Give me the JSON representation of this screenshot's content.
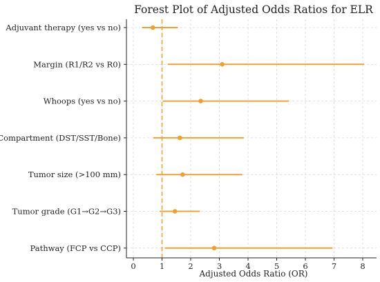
{
  "chart_data": {
    "type": "scatter",
    "title": "Forest Plot of Adjusted Odds Ratios for ELR",
    "xlabel": "Adjusted Odds Ratio (OR)",
    "ylabel": "",
    "xlim": [
      -0.25,
      8.4
    ],
    "xticks": [
      0,
      1,
      2,
      3,
      4,
      5,
      6,
      7,
      8
    ],
    "reference_line": 1,
    "grid": true,
    "color": "#f0a030",
    "rows": [
      {
        "label": "Adjuvant therapy (yes vs no)",
        "or": 0.68,
        "lower": 0.3,
        "upper": 1.55
      },
      {
        "label": "Margin (R1/R2 vs R0)",
        "or": 3.1,
        "lower": 1.2,
        "upper": 8.05
      },
      {
        "label": "Whoops (yes vs no)",
        "or": 2.35,
        "lower": 1.02,
        "upper": 5.42
      },
      {
        "label": "Compartment (DST/SST/Bone)",
        "or": 1.62,
        "lower": 0.7,
        "upper": 3.85
      },
      {
        "label": "Tumor size (>100 mm)",
        "or": 1.72,
        "lower": 0.8,
        "upper": 3.8
      },
      {
        "label": "Tumor grade (G1→G2→G3)",
        "or": 1.45,
        "lower": 0.92,
        "upper": 2.32
      },
      {
        "label": "Pathway (FCP vs CCP)",
        "or": 2.82,
        "lower": 1.1,
        "upper": 6.95
      }
    ]
  }
}
